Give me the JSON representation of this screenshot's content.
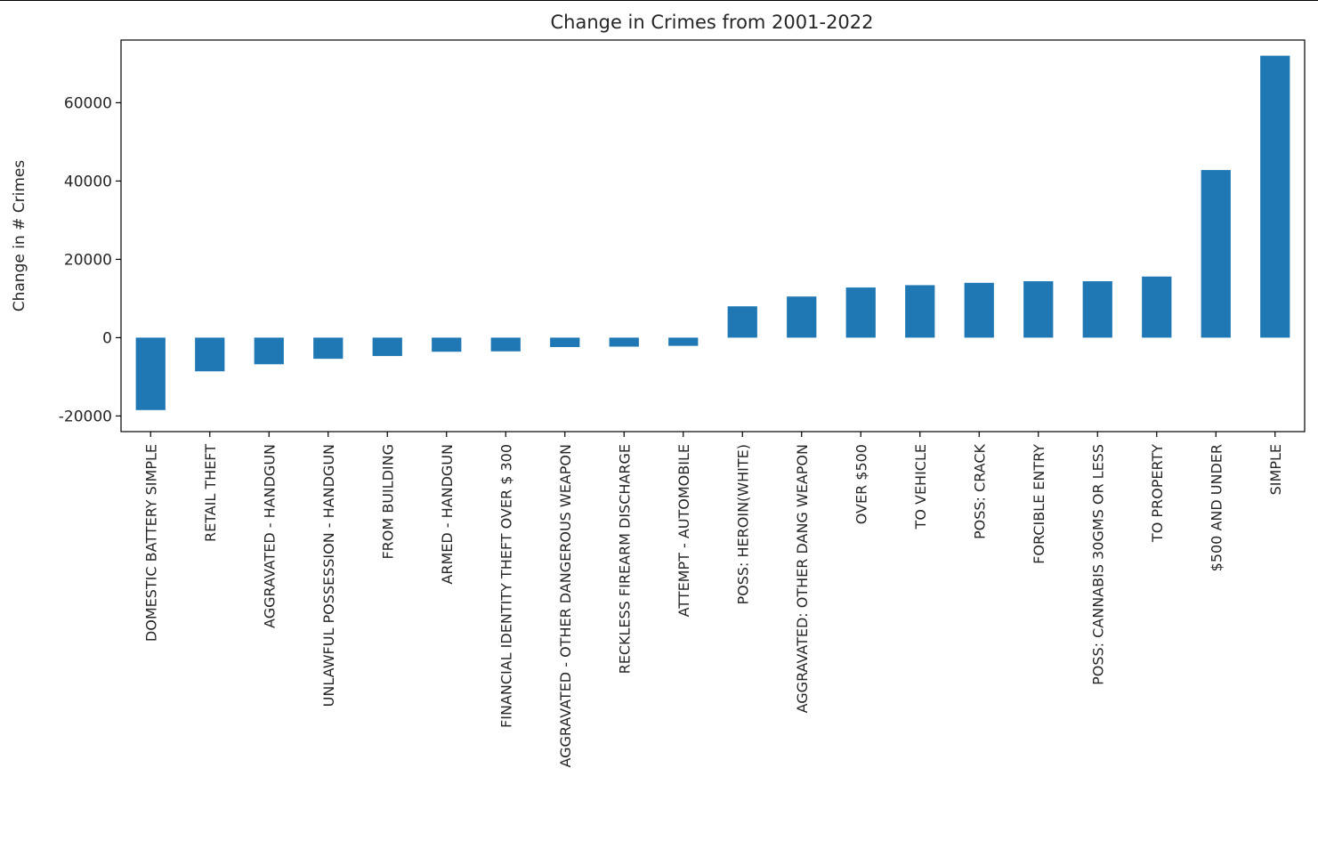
{
  "chart_data": {
    "type": "bar",
    "title": "Change in Crimes from 2001-2022",
    "xlabel": "",
    "ylabel": "Change in # Crimes",
    "ylim": [
      -24000,
      76000
    ],
    "yticks": [
      -20000,
      0,
      20000,
      40000,
      60000
    ],
    "grid": false,
    "legend": "none",
    "bar_color": "#1f77b4",
    "categories": [
      "DOMESTIC BATTERY SIMPLE",
      "RETAIL THEFT",
      "AGGRAVATED - HANDGUN",
      "UNLAWFUL POSSESSION - HANDGUN",
      "FROM BUILDING",
      "ARMED - HANDGUN",
      "FINANCIAL IDENTITY THEFT OVER $ 300",
      "AGGRAVATED - OTHER DANGEROUS WEAPON",
      "RECKLESS FIREARM DISCHARGE",
      "ATTEMPT - AUTOMOBILE",
      "POSS: HEROIN(WHITE)",
      "AGGRAVATED: OTHER DANG WEAPON",
      "OVER $500",
      "TO VEHICLE",
      "POSS: CRACK",
      "FORCIBLE ENTRY",
      "POSS: CANNABIS 30GMS OR LESS",
      "TO PROPERTY",
      "$500 AND UNDER",
      "SIMPLE"
    ],
    "values": [
      -18500,
      -8600,
      -6800,
      -5400,
      -4700,
      -3600,
      -3500,
      -2400,
      -2300,
      -2100,
      8000,
      10500,
      12800,
      13400,
      14000,
      14400,
      14400,
      15600,
      42800,
      72000
    ]
  }
}
